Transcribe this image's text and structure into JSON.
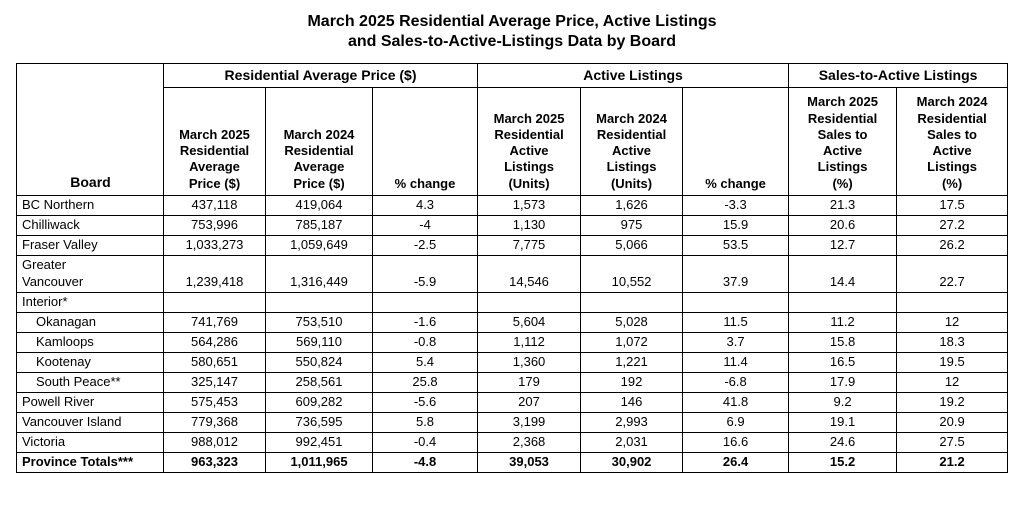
{
  "title": {
    "line1": "March 2025 Residential Average Price, Active Listings",
    "line2": "and Sales-to-Active-Listings Data by Board"
  },
  "table": {
    "board_header": "Board",
    "group_headers": [
      {
        "label": "Residential Average Price ($)"
      },
      {
        "label": "Active Listings"
      },
      {
        "label": "Sales-to-Active Listings"
      }
    ],
    "columns": [
      "March 2025\nResidential\nAverage\nPrice ($)",
      "March 2024\nResidential\nAverage\nPrice ($)",
      "% change",
      "March 2025\nResidential\nActive\nListings\n(Units)",
      "March 2024\nResidential\nActive\nListings\n(Units)",
      "% change",
      "March 2025\nResidential\nSales to\nActive\nListings\n(%)",
      "March 2024\nResidential\nSales to\nActive\nListings\n(%)"
    ],
    "rows": [
      {
        "board": "BC Northern",
        "cells": [
          "437,118",
          "419,064",
          "4.3",
          "1,573",
          "1,626",
          "-3.3",
          "21.3",
          "17.5"
        ]
      },
      {
        "board": "Chilliwack",
        "cells": [
          "753,996",
          "785,187",
          "-4",
          "1,130",
          "975",
          "15.9",
          "20.6",
          "27.2"
        ]
      },
      {
        "board": "Fraser Valley",
        "cells": [
          "1,033,273",
          "1,059,649",
          "-2.5",
          "7,775",
          "5,066",
          "53.5",
          "12.7",
          "26.2"
        ]
      },
      {
        "board": "Greater\nVancouver",
        "cells": [
          "1,239,418",
          "1,316,449",
          "-5.9",
          "14,546",
          "10,552",
          "37.9",
          "14.4",
          "22.7"
        ]
      },
      {
        "board": "Interior*",
        "cells": [
          "",
          "",
          "",
          "",
          "",
          "",
          "",
          ""
        ]
      },
      {
        "board": "Okanagan",
        "indent": true,
        "cells": [
          "741,769",
          "753,510",
          "-1.6",
          "5,604",
          "5,028",
          "11.5",
          "11.2",
          "12"
        ]
      },
      {
        "board": "Kamloops",
        "indent": true,
        "cells": [
          "564,286",
          "569,110",
          "-0.8",
          "1,112",
          "1,072",
          "3.7",
          "15.8",
          "18.3"
        ]
      },
      {
        "board": "Kootenay",
        "indent": true,
        "cells": [
          "580,651",
          "550,824",
          "5.4",
          "1,360",
          "1,221",
          "11.4",
          "16.5",
          "19.5"
        ]
      },
      {
        "board": "South Peace**",
        "indent": true,
        "cells": [
          "325,147",
          "258,561",
          "25.8",
          "179",
          "192",
          "-6.8",
          "17.9",
          "12"
        ]
      },
      {
        "board": "Powell River",
        "cells": [
          "575,453",
          "609,282",
          "-5.6",
          "207",
          "146",
          "41.8",
          "9.2",
          "19.2"
        ]
      },
      {
        "board": "Vancouver Island",
        "cells": [
          "779,368",
          "736,595",
          "5.8",
          "3,199",
          "2,993",
          "6.9",
          "19.1",
          "20.9"
        ]
      },
      {
        "board": "Victoria",
        "cells": [
          "988,012",
          "992,451",
          "-0.4",
          "2,368",
          "2,031",
          "16.6",
          "24.6",
          "27.5"
        ]
      },
      {
        "board": "Province Totals***",
        "bold": true,
        "cells": [
          "963,323",
          "1,011,965",
          "-4.8",
          "39,053",
          "30,902",
          "26.4",
          "15.2",
          "21.2"
        ]
      }
    ]
  }
}
